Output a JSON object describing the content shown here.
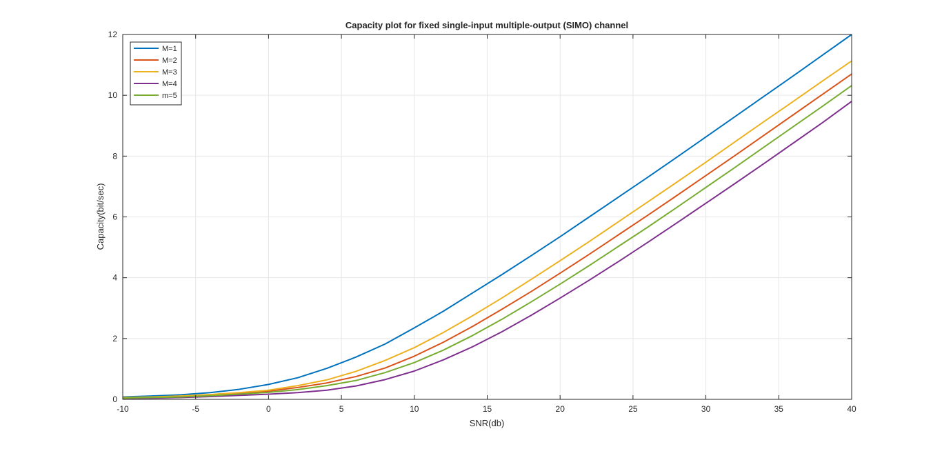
{
  "chart_data": {
    "type": "line",
    "title": "Capacity plot for fixed single-input multiple-output (SIMO) channel",
    "xlabel": "SNR(db)",
    "ylabel": "Capacity(bit/sec)",
    "xlim": [
      -10,
      40
    ],
    "ylim": [
      0,
      12
    ],
    "xticks": [
      -10,
      -5,
      0,
      5,
      10,
      15,
      20,
      25,
      30,
      35,
      40
    ],
    "yticks": [
      0,
      2,
      4,
      6,
      8,
      10,
      12
    ],
    "grid": true,
    "legend_position": "top-left",
    "x": [
      -10,
      -8,
      -6,
      -4,
      -2,
      0,
      2,
      4,
      6,
      8,
      10,
      12,
      14,
      16,
      18,
      20,
      22,
      24,
      26,
      28,
      30,
      32,
      34,
      36,
      38,
      40
    ],
    "series": [
      {
        "name": "M=1",
        "color": "#0072BD",
        "values": [
          0.08,
          0.11,
          0.15,
          0.22,
          0.33,
          0.49,
          0.71,
          1.02,
          1.39,
          1.82,
          2.35,
          2.9,
          3.5,
          4.1,
          4.72,
          5.35,
          6.0,
          6.65,
          7.3,
          7.96,
          8.63,
          9.3,
          9.97,
          10.64,
          11.32,
          12.0
        ]
      },
      {
        "name": "M=2",
        "color": "#D95319",
        "values": [
          0.05,
          0.07,
          0.1,
          0.14,
          0.2,
          0.27,
          0.39,
          0.54,
          0.75,
          1.03,
          1.42,
          1.88,
          2.4,
          2.96,
          3.54,
          4.15,
          4.77,
          5.41,
          6.05,
          6.7,
          7.36,
          8.02,
          8.69,
          9.36,
          10.03,
          10.7
        ]
      },
      {
        "name": "M=3",
        "color": "#EDB120",
        "values": [
          0.06,
          0.08,
          0.11,
          0.16,
          0.22,
          0.3,
          0.45,
          0.64,
          0.92,
          1.28,
          1.7,
          2.2,
          2.75,
          3.33,
          3.94,
          4.56,
          5.19,
          5.84,
          6.49,
          7.14,
          7.8,
          8.47,
          9.14,
          9.8,
          10.47,
          11.13
        ]
      },
      {
        "name": "M=4",
        "color": "#7E2F8E",
        "values": [
          0.03,
          0.04,
          0.06,
          0.09,
          0.13,
          0.17,
          0.22,
          0.3,
          0.44,
          0.65,
          0.93,
          1.3,
          1.73,
          2.22,
          2.76,
          3.33,
          3.92,
          4.53,
          5.16,
          5.8,
          6.45,
          7.1,
          7.76,
          8.43,
          9.1,
          9.8
        ]
      },
      {
        "name": "m=5",
        "color": "#77AC30",
        "values": [
          0.04,
          0.06,
          0.08,
          0.12,
          0.17,
          0.23,
          0.32,
          0.45,
          0.62,
          0.88,
          1.21,
          1.62,
          2.1,
          2.63,
          3.2,
          3.79,
          4.4,
          5.03,
          5.66,
          6.31,
          6.97,
          7.63,
          8.3,
          8.97,
          9.64,
          10.32
        ]
      }
    ]
  }
}
